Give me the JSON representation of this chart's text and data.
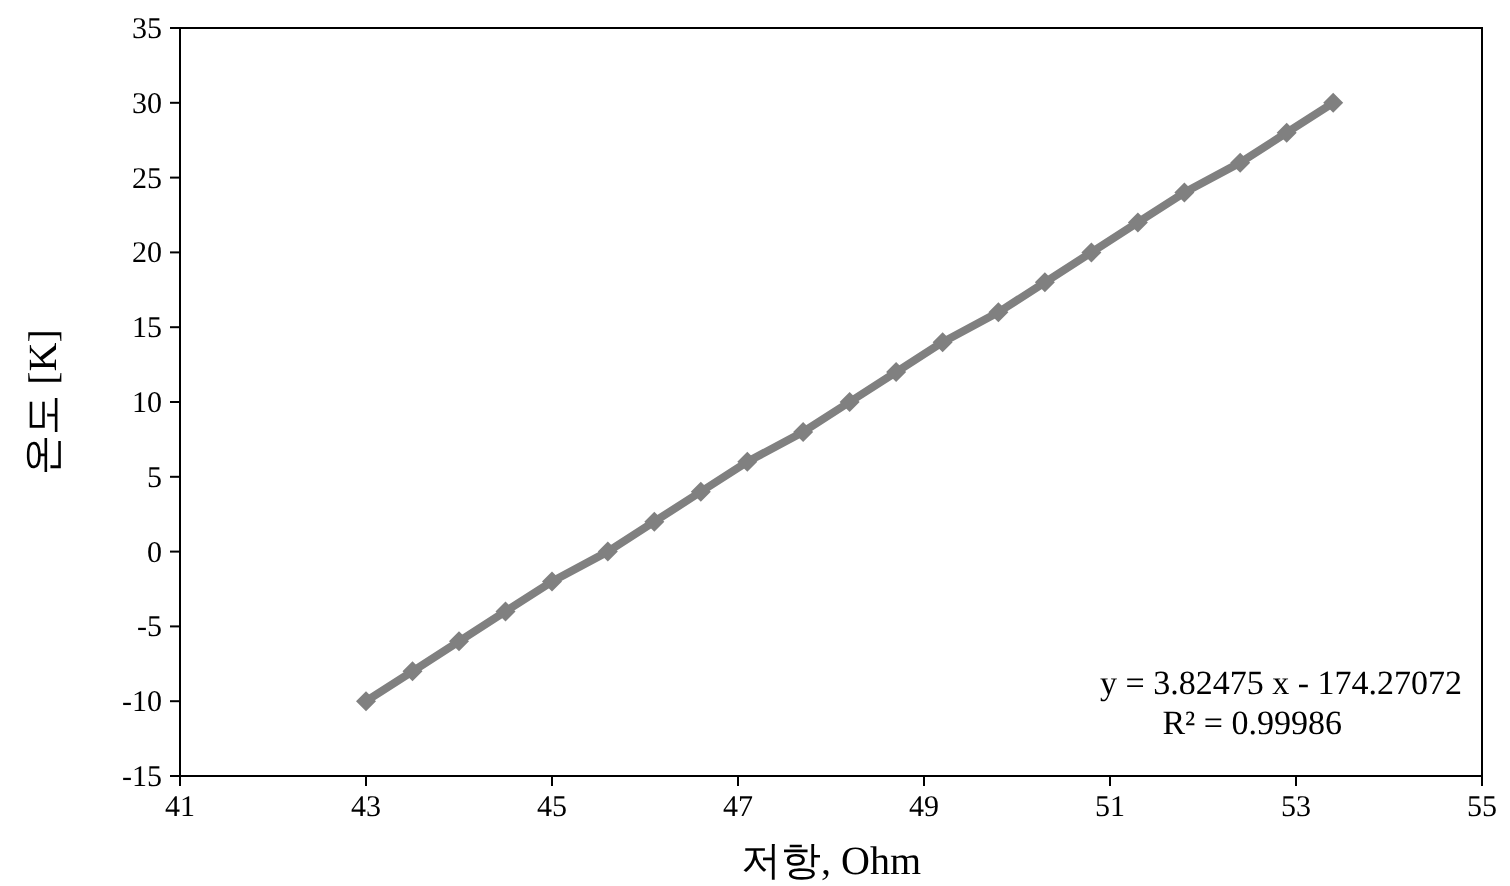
{
  "chart_data": {
    "type": "line",
    "xlabel": "저항, Ohm",
    "ylabel": "온도 [K]",
    "annotations": [
      "y = 3.82475 x - 174.27072",
      "R² = 0.99986"
    ],
    "x": [
      43.0,
      43.5,
      44.0,
      44.5,
      45.0,
      45.6,
      46.1,
      46.6,
      47.1,
      47.7,
      48.2,
      48.7,
      49.2,
      49.8,
      50.3,
      50.8,
      51.3,
      51.8,
      52.4,
      52.9,
      53.4
    ],
    "series": [
      {
        "color": "#808080",
        "values": [
          -10,
          -8,
          -6,
          -4,
          -2,
          0,
          2,
          4,
          6,
          8,
          10,
          12,
          14,
          16,
          18,
          20,
          22,
          24,
          26,
          28,
          30
        ]
      }
    ],
    "xlim": [
      41,
      55
    ],
    "xticks": [
      41,
      43,
      45,
      47,
      49,
      51,
      53,
      55
    ],
    "ylim": [
      -15,
      35
    ],
    "yticks": [
      -15,
      -10,
      -5,
      0,
      5,
      10,
      15,
      20,
      25,
      30,
      35
    ],
    "marker": "diamond",
    "line_style": "solid"
  }
}
